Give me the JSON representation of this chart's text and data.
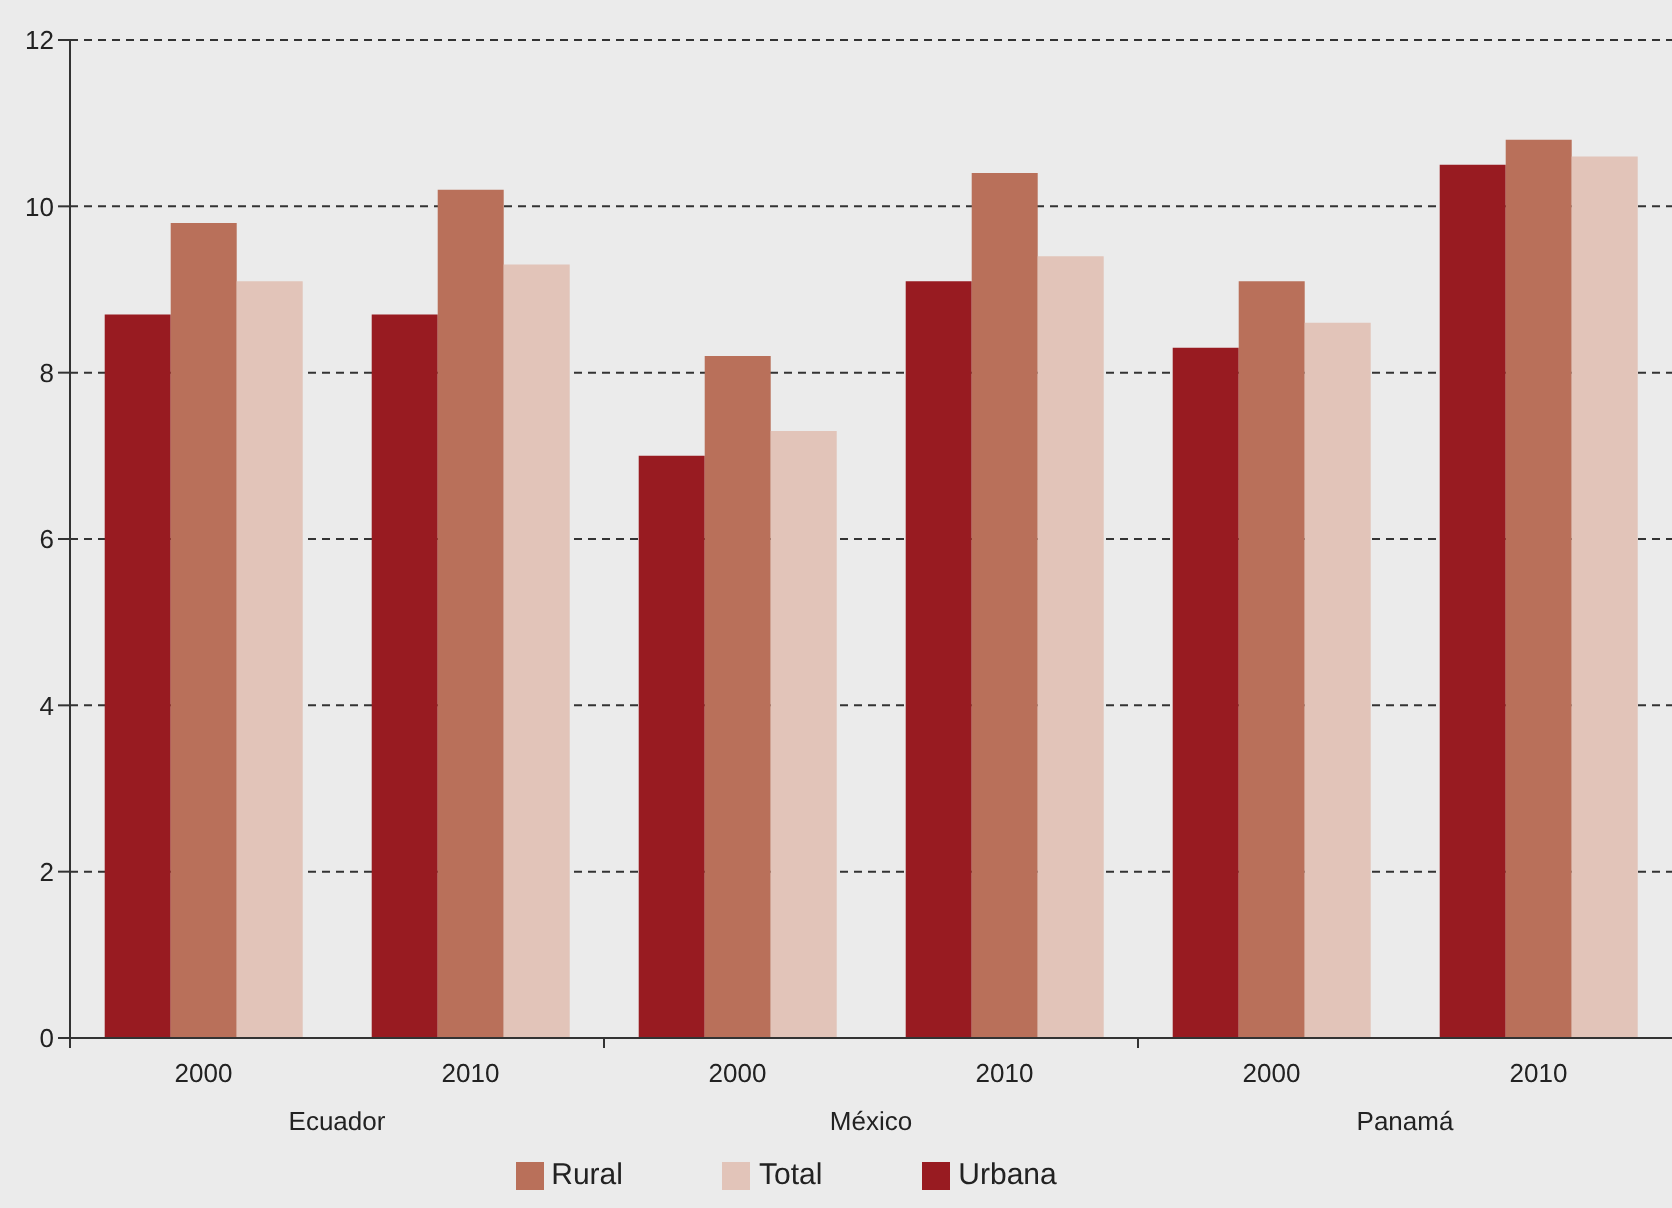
{
  "chart_data": {
    "type": "bar",
    "categories": [
      "2000",
      "2010",
      "2000",
      "2010",
      "2000",
      "2010"
    ],
    "annotations": [
      "Ecuador",
      "México",
      "Panamá"
    ],
    "series": [
      {
        "name": "Urbana",
        "color": "#981b21",
        "values": [
          8.7,
          8.7,
          7.0,
          9.1,
          8.3,
          10.5
        ]
      },
      {
        "name": "Rural",
        "color": "#b9705a",
        "values": [
          9.8,
          10.2,
          8.2,
          10.4,
          9.1,
          10.8
        ]
      },
      {
        "name": "Total",
        "color": "#e2c4b9",
        "values": [
          9.1,
          9.3,
          7.3,
          9.4,
          8.6,
          10.6
        ]
      }
    ],
    "ylim": [
      0,
      12
    ],
    "yticks": [
      0,
      2,
      4,
      6,
      8,
      10,
      12
    ],
    "grid": "y",
    "legend": "bottom"
  }
}
